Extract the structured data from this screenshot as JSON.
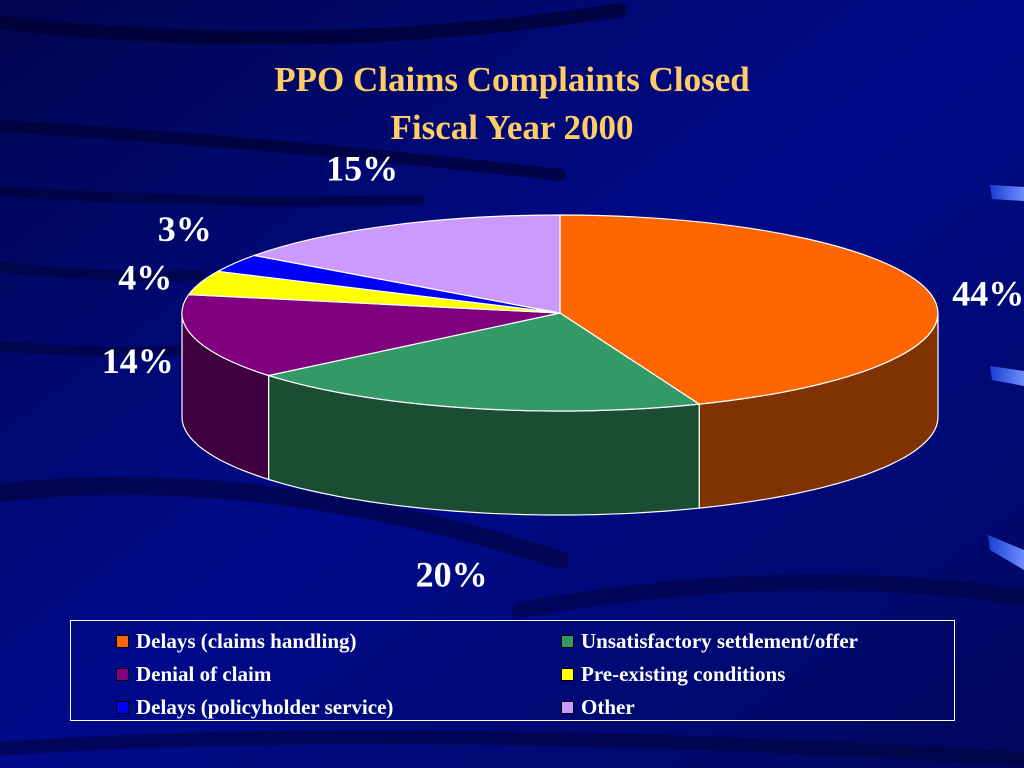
{
  "title": {
    "line1": "PPO Claims Complaints Closed",
    "line2": "Fiscal Year 2000"
  },
  "chart_data": {
    "type": "pie",
    "style": "3d",
    "title": "PPO Claims Complaints Closed Fiscal Year 2000",
    "categories": [
      "Delays (claims handling)",
      "Unsatisfactory settlement/offer",
      "Denial of claim",
      "Pre-existing conditions",
      "Delays (policyholder service)",
      "Other"
    ],
    "values": [
      44,
      20,
      14,
      4,
      3,
      15
    ],
    "labels": [
      "44%",
      "20%",
      "14%",
      "4%",
      "3%",
      "15%"
    ],
    "colors": [
      "#ff6600",
      "#339966",
      "#800080",
      "#ffff00",
      "#0000ff",
      "#cc99ff"
    ],
    "legend_position": "bottom"
  },
  "legend": {
    "items": [
      {
        "label": "Delays (claims handling)",
        "color": "#ff6600"
      },
      {
        "label": "Unsatisfactory settlement/offer",
        "color": "#339966"
      },
      {
        "label": "Denial of claim",
        "color": "#800080"
      },
      {
        "label": "Pre-existing conditions",
        "color": "#ffff00"
      },
      {
        "label": "Delays (policyholder service)",
        "color": "#0000ff"
      },
      {
        "label": "Other",
        "color": "#cc99ff"
      }
    ]
  },
  "theme": {
    "background": "#00087a",
    "title_color": "#ffcc66"
  }
}
